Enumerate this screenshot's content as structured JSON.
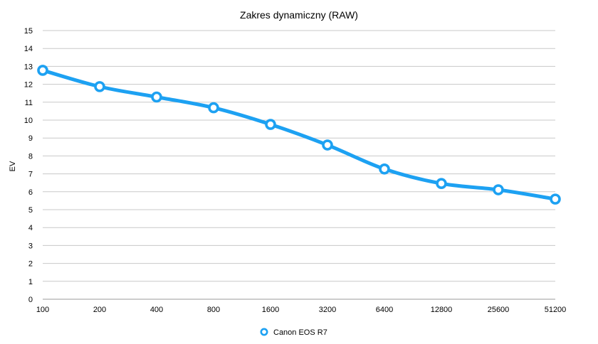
{
  "chart_data": {
    "type": "line",
    "title": "Zakres dynamiczny (RAW)",
    "xlabel": "",
    "ylabel": "EV",
    "categories": [
      "100",
      "200",
      "400",
      "800",
      "1600",
      "3200",
      "6400",
      "12800",
      "25600",
      "51200"
    ],
    "series": [
      {
        "name": "Canon EOS R7",
        "values": [
          12.78,
          11.87,
          11.29,
          10.69,
          9.76,
          8.61,
          7.27,
          6.46,
          6.11,
          5.59
        ],
        "color": "#1da1f2"
      }
    ],
    "ylim": [
      0,
      15
    ],
    "yticks": [
      "0",
      "1",
      "2",
      "3",
      "4",
      "5",
      "6",
      "7",
      "8",
      "9",
      "10",
      "11",
      "12",
      "13",
      "14",
      "15"
    ],
    "grid": true,
    "legend_position": "bottom-center",
    "marker": "hollow-circle"
  }
}
